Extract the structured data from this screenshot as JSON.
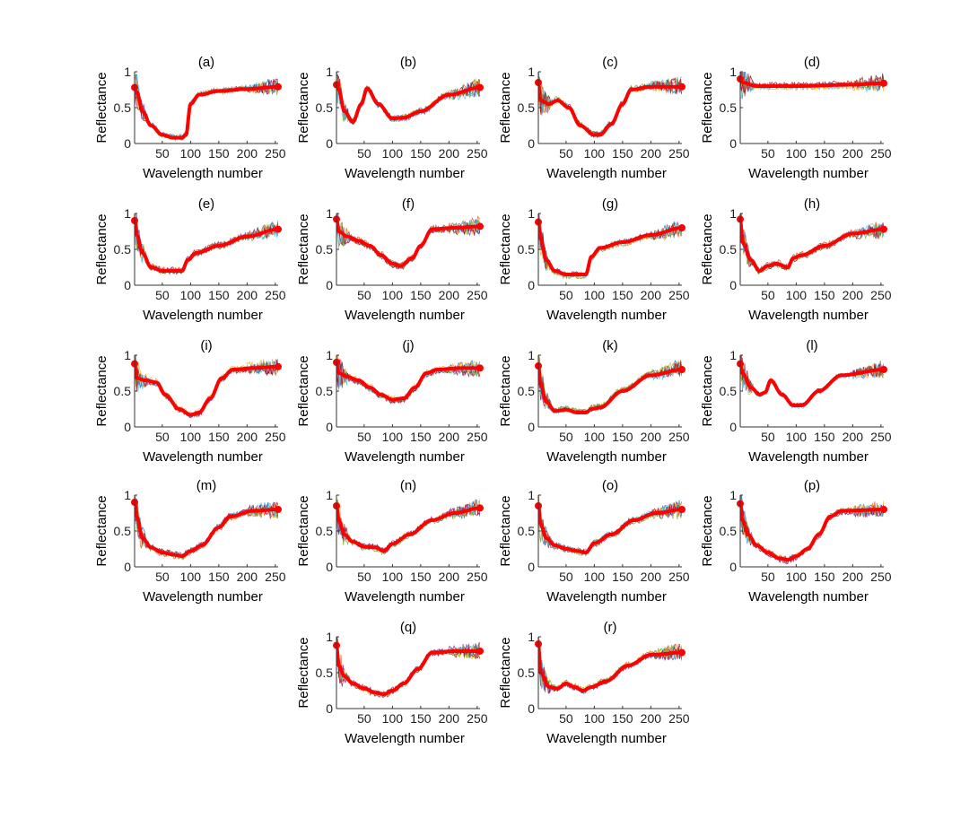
{
  "figure": {
    "description_type": "grid of reflectance spectra subplots"
  },
  "chart_data": [
    {
      "type": "line",
      "title": "(a)",
      "xlabel": "Wavelength number",
      "ylabel": "Reflectance",
      "xlim": [
        1,
        255
      ],
      "ylim": [
        0,
        1
      ],
      "xticks": [
        50,
        100,
        150,
        200,
        250
      ],
      "yticks": [
        0,
        0.5,
        1
      ],
      "series": [
        {
          "name": "mean",
          "color": "#ff0000",
          "x": [
            1,
            5,
            15,
            30,
            50,
            70,
            85,
            92,
            100,
            115,
            150,
            200,
            255
          ],
          "y": [
            0.78,
            0.72,
            0.45,
            0.25,
            0.12,
            0.08,
            0.08,
            0.12,
            0.55,
            0.68,
            0.73,
            0.76,
            0.79
          ]
        }
      ]
    },
    {
      "type": "line",
      "title": "(b)",
      "xlabel": "Wavelength number",
      "ylabel": "Reflectance",
      "xlim": [
        1,
        255
      ],
      "ylim": [
        0,
        1
      ],
      "xticks": [
        50,
        100,
        150,
        200,
        250
      ],
      "yticks": [
        0,
        0.5,
        1
      ],
      "series": [
        {
          "name": "mean",
          "color": "#ff0000",
          "x": [
            1,
            5,
            15,
            30,
            45,
            55,
            75,
            100,
            120,
            150,
            200,
            255
          ],
          "y": [
            0.82,
            0.75,
            0.45,
            0.3,
            0.55,
            0.77,
            0.55,
            0.35,
            0.36,
            0.45,
            0.68,
            0.78
          ]
        }
      ]
    },
    {
      "type": "line",
      "title": "(c)",
      "xlabel": "Wavelength number",
      "ylabel": "Reflectance",
      "xlim": [
        1,
        255
      ],
      "ylim": [
        0,
        1
      ],
      "xticks": [
        50,
        100,
        150,
        200,
        250
      ],
      "yticks": [
        0,
        0.5,
        1
      ],
      "series": [
        {
          "name": "mean",
          "color": "#ff0000",
          "x": [
            1,
            5,
            20,
            35,
            55,
            75,
            100,
            110,
            130,
            150,
            165,
            200,
            255
          ],
          "y": [
            0.85,
            0.6,
            0.55,
            0.6,
            0.5,
            0.25,
            0.12,
            0.12,
            0.27,
            0.55,
            0.75,
            0.79,
            0.79
          ]
        }
      ]
    },
    {
      "type": "line",
      "title": "(d)",
      "xlabel": "Wavelength number",
      "ylabel": "Reflectance",
      "xlim": [
        1,
        255
      ],
      "ylim": [
        0,
        1
      ],
      "xticks": [
        50,
        100,
        150,
        200,
        250
      ],
      "yticks": [
        0,
        0.5,
        1
      ],
      "series": [
        {
          "name": "mean",
          "color": "#ff0000",
          "x": [
            1,
            5,
            30,
            100,
            200,
            255
          ],
          "y": [
            0.9,
            0.85,
            0.8,
            0.8,
            0.82,
            0.84
          ]
        }
      ]
    },
    {
      "type": "line",
      "title": "(e)",
      "xlabel": "Wavelength number",
      "ylabel": "Reflectance",
      "xlim": [
        1,
        255
      ],
      "ylim": [
        0,
        1
      ],
      "xticks": [
        50,
        100,
        150,
        200,
        250
      ],
      "yticks": [
        0,
        0.5,
        1
      ],
      "series": [
        {
          "name": "mean",
          "color": "#ff0000",
          "x": [
            1,
            5,
            15,
            30,
            50,
            85,
            95,
            110,
            150,
            200,
            255
          ],
          "y": [
            0.9,
            0.7,
            0.45,
            0.25,
            0.2,
            0.2,
            0.35,
            0.45,
            0.55,
            0.68,
            0.78
          ]
        }
      ]
    },
    {
      "type": "line",
      "title": "(f)",
      "xlabel": "Wavelength number",
      "ylabel": "Reflectance",
      "xlim": [
        1,
        255
      ],
      "ylim": [
        0,
        1
      ],
      "xticks": [
        50,
        100,
        150,
        200,
        250
      ],
      "yticks": [
        0,
        0.5,
        1
      ],
      "series": [
        {
          "name": "mean",
          "color": "#ff0000",
          "x": [
            1,
            5,
            20,
            40,
            60,
            80,
            100,
            115,
            135,
            150,
            170,
            210,
            255
          ],
          "y": [
            0.92,
            0.75,
            0.68,
            0.62,
            0.55,
            0.42,
            0.3,
            0.27,
            0.38,
            0.55,
            0.78,
            0.8,
            0.82
          ]
        }
      ]
    },
    {
      "type": "line",
      "title": "(g)",
      "xlabel": "Wavelength number",
      "ylabel": "Reflectance",
      "xlim": [
        1,
        255
      ],
      "ylim": [
        0,
        1
      ],
      "xticks": [
        50,
        100,
        150,
        200,
        250
      ],
      "yticks": [
        0,
        0.5,
        1
      ],
      "series": [
        {
          "name": "mean",
          "color": "#ff0000",
          "x": [
            1,
            5,
            15,
            30,
            50,
            85,
            95,
            110,
            150,
            200,
            255
          ],
          "y": [
            0.88,
            0.65,
            0.35,
            0.2,
            0.15,
            0.15,
            0.4,
            0.52,
            0.6,
            0.7,
            0.8
          ]
        }
      ]
    },
    {
      "type": "line",
      "title": "(h)",
      "xlabel": "Wavelength number",
      "ylabel": "Reflectance",
      "xlim": [
        1,
        255
      ],
      "ylim": [
        0,
        1
      ],
      "xticks": [
        50,
        100,
        150,
        200,
        250
      ],
      "yticks": [
        0,
        0.5,
        1
      ],
      "series": [
        {
          "name": "mean",
          "color": "#ff0000",
          "x": [
            1,
            5,
            20,
            35,
            50,
            65,
            85,
            95,
            110,
            150,
            200,
            255
          ],
          "y": [
            0.92,
            0.6,
            0.35,
            0.2,
            0.27,
            0.3,
            0.25,
            0.38,
            0.42,
            0.55,
            0.72,
            0.78
          ]
        }
      ]
    },
    {
      "type": "line",
      "title": "(i)",
      "xlabel": "Wavelength number",
      "ylabel": "Reflectance",
      "xlim": [
        1,
        255
      ],
      "ylim": [
        0,
        1
      ],
      "xticks": [
        50,
        100,
        150,
        200,
        250
      ],
      "yticks": [
        0,
        0.5,
        1
      ],
      "series": [
        {
          "name": "mean",
          "color": "#ff0000",
          "x": [
            1,
            5,
            20,
            40,
            55,
            80,
            100,
            115,
            135,
            155,
            175,
            210,
            255
          ],
          "y": [
            0.88,
            0.68,
            0.65,
            0.62,
            0.45,
            0.25,
            0.17,
            0.2,
            0.4,
            0.68,
            0.8,
            0.82,
            0.84
          ]
        }
      ]
    },
    {
      "type": "line",
      "title": "(j)",
      "xlabel": "Wavelength number",
      "ylabel": "Reflectance",
      "xlim": [
        1,
        255
      ],
      "ylim": [
        0,
        1
      ],
      "xticks": [
        50,
        100,
        150,
        200,
        250
      ],
      "yticks": [
        0,
        0.5,
        1
      ],
      "series": [
        {
          "name": "mean",
          "color": "#ff0000",
          "x": [
            1,
            5,
            20,
            40,
            60,
            80,
            100,
            120,
            140,
            160,
            180,
            220,
            255
          ],
          "y": [
            0.9,
            0.75,
            0.7,
            0.65,
            0.55,
            0.45,
            0.38,
            0.4,
            0.55,
            0.75,
            0.8,
            0.82,
            0.82
          ]
        }
      ]
    },
    {
      "type": "line",
      "title": "(k)",
      "xlabel": "Wavelength number",
      "ylabel": "Reflectance",
      "xlim": [
        1,
        255
      ],
      "ylim": [
        0,
        1
      ],
      "xticks": [
        50,
        100,
        150,
        200,
        250
      ],
      "yticks": [
        0,
        0.5,
        1
      ],
      "series": [
        {
          "name": "mean",
          "color": "#ff0000",
          "x": [
            1,
            5,
            15,
            30,
            50,
            70,
            85,
            95,
            110,
            150,
            200,
            255
          ],
          "y": [
            0.85,
            0.6,
            0.35,
            0.22,
            0.24,
            0.2,
            0.2,
            0.25,
            0.27,
            0.5,
            0.72,
            0.8
          ]
        }
      ]
    },
    {
      "type": "line",
      "title": "(l)",
      "xlabel": "Wavelength number",
      "ylabel": "Reflectance",
      "xlim": [
        1,
        255
      ],
      "ylim": [
        0,
        1
      ],
      "xticks": [
        50,
        100,
        150,
        200,
        250
      ],
      "yticks": [
        0,
        0.5,
        1
      ],
      "series": [
        {
          "name": "mean",
          "color": "#ff0000",
          "x": [
            1,
            5,
            20,
            35,
            45,
            55,
            75,
            95,
            110,
            140,
            180,
            255
          ],
          "y": [
            0.88,
            0.75,
            0.55,
            0.45,
            0.48,
            0.65,
            0.45,
            0.3,
            0.3,
            0.5,
            0.72,
            0.8
          ]
        }
      ]
    },
    {
      "type": "line",
      "title": "(m)",
      "xlabel": "Wavelength number",
      "ylabel": "Reflectance",
      "xlim": [
        1,
        255
      ],
      "ylim": [
        0,
        1
      ],
      "xticks": [
        50,
        100,
        150,
        200,
        250
      ],
      "yticks": [
        0,
        0.5,
        1
      ],
      "series": [
        {
          "name": "mean",
          "color": "#ff0000",
          "x": [
            1,
            5,
            15,
            30,
            50,
            70,
            85,
            100,
            120,
            150,
            170,
            210,
            255
          ],
          "y": [
            0.9,
            0.7,
            0.4,
            0.27,
            0.2,
            0.17,
            0.15,
            0.22,
            0.3,
            0.55,
            0.7,
            0.78,
            0.8
          ]
        }
      ]
    },
    {
      "type": "line",
      "title": "(n)",
      "xlabel": "Wavelength number",
      "ylabel": "Reflectance",
      "xlim": [
        1,
        255
      ],
      "ylim": [
        0,
        1
      ],
      "xticks": [
        50,
        100,
        150,
        200,
        250
      ],
      "yticks": [
        0,
        0.5,
        1
      ],
      "series": [
        {
          "name": "mean",
          "color": "#ff0000",
          "x": [
            1,
            5,
            15,
            30,
            50,
            70,
            85,
            100,
            130,
            170,
            210,
            255
          ],
          "y": [
            0.85,
            0.65,
            0.45,
            0.35,
            0.28,
            0.27,
            0.22,
            0.32,
            0.45,
            0.65,
            0.75,
            0.82
          ]
        }
      ]
    },
    {
      "type": "line",
      "title": "(o)",
      "xlabel": "Wavelength number",
      "ylabel": "Reflectance",
      "xlim": [
        1,
        255
      ],
      "ylim": [
        0,
        1
      ],
      "xticks": [
        50,
        100,
        150,
        200,
        250
      ],
      "yticks": [
        0,
        0.5,
        1
      ],
      "series": [
        {
          "name": "mean",
          "color": "#ff0000",
          "x": [
            1,
            5,
            15,
            30,
            50,
            70,
            85,
            100,
            130,
            170,
            210,
            255
          ],
          "y": [
            0.85,
            0.6,
            0.4,
            0.3,
            0.25,
            0.22,
            0.2,
            0.33,
            0.45,
            0.65,
            0.75,
            0.8
          ]
        }
      ]
    },
    {
      "type": "line",
      "title": "(p)",
      "xlabel": "Wavelength number",
      "ylabel": "Reflectance",
      "xlim": [
        1,
        255
      ],
      "ylim": [
        0,
        1
      ],
      "xticks": [
        50,
        100,
        150,
        200,
        250
      ],
      "yticks": [
        0,
        0.5,
        1
      ],
      "series": [
        {
          "name": "mean",
          "color": "#ff0000",
          "x": [
            1,
            5,
            15,
            30,
            50,
            70,
            85,
            100,
            120,
            140,
            160,
            180,
            255
          ],
          "y": [
            0.88,
            0.65,
            0.45,
            0.3,
            0.2,
            0.12,
            0.1,
            0.15,
            0.25,
            0.45,
            0.7,
            0.78,
            0.8
          ]
        }
      ]
    },
    {
      "type": "line",
      "title": "(q)",
      "xlabel": "Wavelength number",
      "ylabel": "Reflectance",
      "xlim": [
        1,
        255
      ],
      "ylim": [
        0,
        1
      ],
      "xticks": [
        50,
        100,
        150,
        200,
        250
      ],
      "yticks": [
        0,
        0.5,
        1
      ],
      "series": [
        {
          "name": "mean",
          "color": "#ff0000",
          "x": [
            1,
            5,
            15,
            30,
            50,
            70,
            85,
            100,
            120,
            145,
            170,
            210,
            255
          ],
          "y": [
            0.88,
            0.6,
            0.45,
            0.35,
            0.28,
            0.22,
            0.2,
            0.25,
            0.35,
            0.55,
            0.78,
            0.8,
            0.8
          ]
        }
      ]
    },
    {
      "type": "line",
      "title": "(r)",
      "xlabel": "Wavelength number",
      "ylabel": "Reflectance",
      "xlim": [
        1,
        255
      ],
      "ylim": [
        0,
        1
      ],
      "xticks": [
        50,
        100,
        150,
        200,
        250
      ],
      "yticks": [
        0,
        0.5,
        1
      ],
      "series": [
        {
          "name": "mean",
          "color": "#ff0000",
          "x": [
            1,
            5,
            20,
            35,
            50,
            65,
            80,
            95,
            120,
            160,
            200,
            255
          ],
          "y": [
            0.9,
            0.5,
            0.3,
            0.28,
            0.35,
            0.3,
            0.25,
            0.3,
            0.38,
            0.6,
            0.75,
            0.78
          ]
        }
      ]
    }
  ],
  "style": {
    "mean_color": "#ff0000",
    "axis_color": "#333333",
    "noise_colors": [
      "#1f77b4",
      "#d95319",
      "#edb120",
      "#7e2f8e",
      "#77ac30",
      "#4dbeee",
      "#a2142f"
    ]
  }
}
